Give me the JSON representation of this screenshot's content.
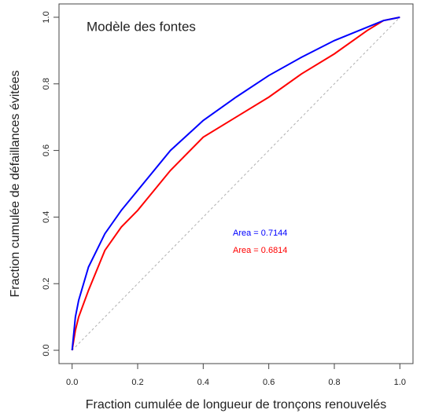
{
  "chart_data": {
    "type": "line",
    "title": "Modèle des fontes",
    "x_label": "Fraction cumulée de longueur de tronçons renouvelés",
    "y_label": "Fraction cumulée de défaillances évitées",
    "x": [
      0,
      0.01,
      0.02,
      0.05,
      0.1,
      0.15,
      0.2,
      0.3,
      0.4,
      0.5,
      0.6,
      0.7,
      0.8,
      0.9,
      0.95,
      1
    ],
    "series": [
      {
        "color": "#b0b0b0",
        "dash": true,
        "values": [
          0,
          0.01,
          0.02,
          0.05,
          0.1,
          0.15,
          0.2,
          0.3,
          0.4,
          0.5,
          0.6,
          0.7,
          0.8,
          0.9,
          0.95,
          1
        ]
      },
      {
        "color": "#ff0000",
        "values": [
          0,
          0.06,
          0.1,
          0.18,
          0.3,
          0.37,
          0.42,
          0.54,
          0.64,
          0.7,
          0.76,
          0.83,
          0.89,
          0.96,
          0.99,
          1
        ]
      },
      {
        "color": "#0000ff",
        "values": [
          0,
          0.1,
          0.15,
          0.25,
          0.35,
          0.42,
          0.48,
          0.6,
          0.69,
          0.76,
          0.825,
          0.88,
          0.93,
          0.97,
          0.99,
          1
        ]
      }
    ],
    "annotations": [
      {
        "text": "Area = 0.7144",
        "color": "#0000ff"
      },
      {
        "text": "Area = 0.6814",
        "color": "#ff0000"
      }
    ],
    "xlim": [
      -0.04,
      1.04
    ],
    "ylim": [
      -0.04,
      1.04
    ],
    "xticks": [
      {
        "value": 0,
        "label": "0.0"
      },
      0.2,
      0.4,
      0.6,
      0.8,
      {
        "value": 1,
        "label": "1.0"
      }
    ],
    "yticks": [
      {
        "value": 0,
        "label": "0.0"
      },
      0.2,
      0.4,
      0.6,
      0.8,
      {
        "value": 1,
        "label": "1.0"
      }
    ]
  }
}
